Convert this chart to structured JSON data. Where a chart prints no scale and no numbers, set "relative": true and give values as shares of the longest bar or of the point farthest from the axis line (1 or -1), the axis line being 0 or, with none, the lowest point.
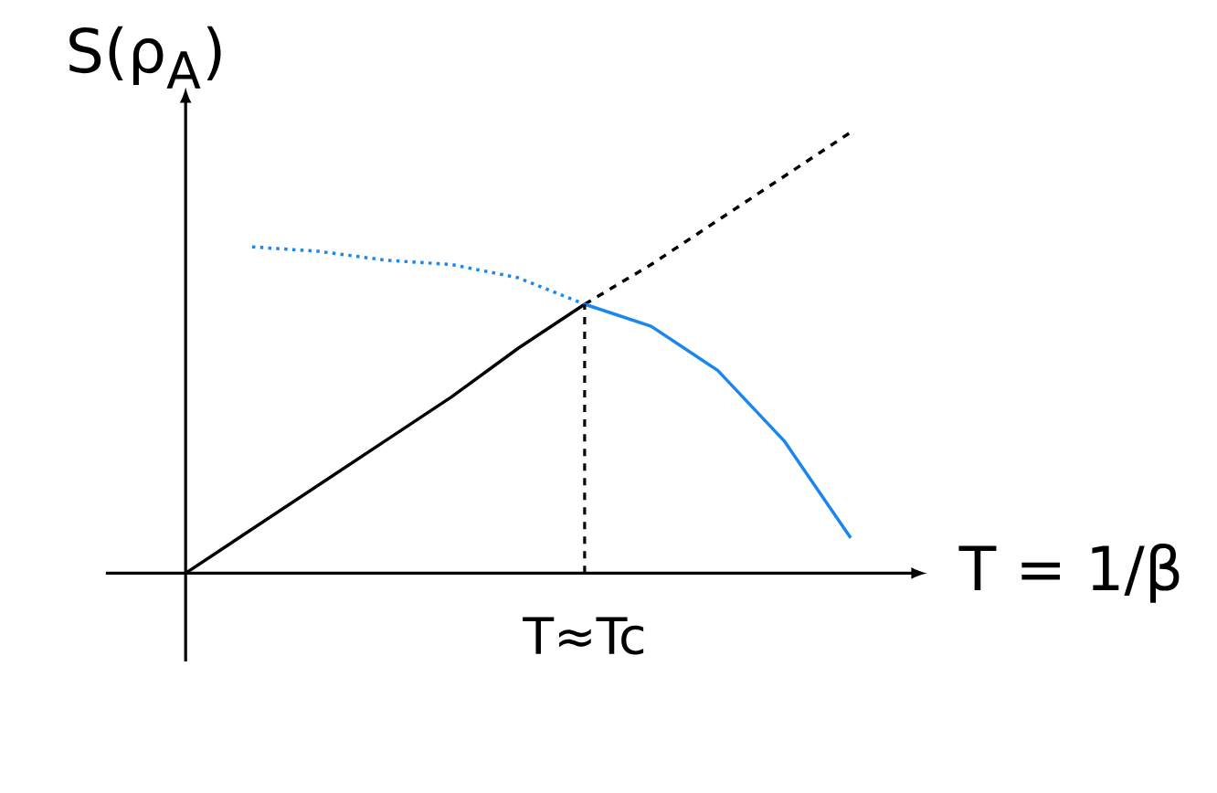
{
  "chart_data": {
    "type": "line",
    "relative": true,
    "xlabel": "T = 1/β",
    "ylabel": "S(ρ$_{A}$)",
    "annotations": [
      "T≈Tc"
    ],
    "categories": [
      null,
      null,
      null,
      null,
      null,
      null,
      null,
      null,
      null,
      null,
      null
    ],
    "series": [
      {
        "color": "#000000",
        "line_style": "solid",
        "values": [
          0,
          0.1,
          0.2,
          0.3,
          0.4,
          0.51,
          0.61,
          null,
          null,
          null,
          null
        ]
      },
      {
        "color": "#000000",
        "line_style": "dashed",
        "values": [
          null,
          null,
          null,
          null,
          null,
          null,
          0.61,
          0.7,
          0.8,
          0.9,
          1.0
        ]
      },
      {
        "color": "#1a86f0",
        "line_style": "dotted",
        "values": [
          null,
          0.74,
          0.73,
          0.71,
          0.7,
          0.67,
          0.61,
          null,
          null,
          null,
          null
        ]
      },
      {
        "color": "#1a86f0",
        "line_style": "solid",
        "values": [
          null,
          null,
          null,
          null,
          null,
          null,
          0.61,
          0.56,
          0.46,
          0.3,
          0.08
        ]
      }
    ]
  }
}
